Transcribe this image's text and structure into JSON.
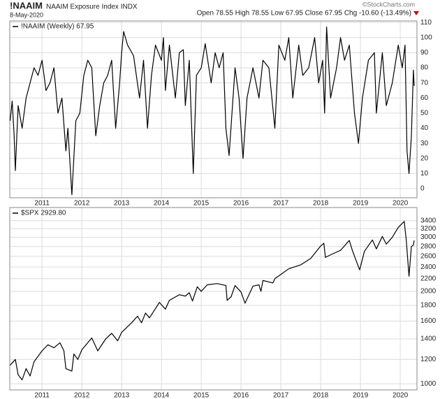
{
  "chart_data": [
    {
      "type": "line",
      "title": "!NAAIM",
      "subtitle": "NAAIM Exposure Index INDX",
      "date": "8-May-2020",
      "quote": "Open 78.55 High 78.55 Low 67.95 Close 67.95 Chg -10.60 (-13.49%)",
      "credit": "©StockCharts.com",
      "x": [
        2010.2,
        2010.25,
        2010.3,
        2010.33,
        2010.4,
        2010.5,
        2010.6,
        2010.7,
        2010.8,
        2010.9,
        2011.0,
        2011.1,
        2011.2,
        2011.3,
        2011.4,
        2011.5,
        2011.6,
        2011.65,
        2011.75,
        2011.85,
        2011.95,
        2012.05,
        2012.15,
        2012.25,
        2012.35,
        2012.45,
        2012.55,
        2012.65,
        2012.75,
        2012.85,
        2012.95,
        2013.0,
        2013.05,
        2013.15,
        2013.3,
        2013.45,
        2013.55,
        2013.65,
        2013.75,
        2013.85,
        2014.0,
        2014.05,
        2014.1,
        2014.2,
        2014.35,
        2014.45,
        2014.55,
        2014.6,
        2014.7,
        2014.8,
        2014.88,
        2015.0,
        2015.1,
        2015.25,
        2015.35,
        2015.45,
        2015.55,
        2015.62,
        2015.7,
        2015.85,
        2015.95,
        2016.05,
        2016.15,
        2016.3,
        2016.45,
        2016.55,
        2016.7,
        2016.85,
        2016.95,
        2017.1,
        2017.2,
        2017.3,
        2017.45,
        2017.55,
        2017.7,
        2017.85,
        2017.95,
        2018.05,
        2018.1,
        2018.15,
        2018.25,
        2018.4,
        2018.5,
        2018.6,
        2018.72,
        2018.85,
        2018.95,
        2019.05,
        2019.2,
        2019.35,
        2019.4,
        2019.55,
        2019.65,
        2019.8,
        2019.95,
        2020.05,
        2020.12,
        2020.17,
        2020.22,
        2020.28,
        2020.33,
        2020.35
      ],
      "series": [
        {
          "name": "!NAAIM (Weekly) 67.95",
          "color": "#000000",
          "values": [
            45,
            58,
            35,
            12,
            55,
            40,
            60,
            70,
            80,
            75,
            85,
            65,
            70,
            80,
            50,
            60,
            25,
            40,
            -4,
            45,
            50,
            75,
            85,
            80,
            35,
            55,
            70,
            75,
            85,
            40,
            70,
            90,
            104,
            95,
            88,
            60,
            85,
            40,
            75,
            95,
            85,
            100,
            65,
            95,
            60,
            90,
            92,
            55,
            85,
            10,
            75,
            80,
            96,
            70,
            90,
            80,
            90,
            40,
            22,
            80,
            60,
            20,
            60,
            80,
            60,
            85,
            80,
            40,
            95,
            85,
            100,
            60,
            95,
            75,
            80,
            100,
            70,
            85,
            50,
            107,
            60,
            80,
            100,
            85,
            95,
            50,
            30,
            60,
            85,
            90,
            50,
            90,
            55,
            70,
            95,
            80,
            95,
            25,
            10,
            35,
            78.55,
            67.95
          ]
        }
      ],
      "xlim": [
        2010.19,
        2020.42
      ],
      "xticks": [
        2011,
        2012,
        2013,
        2014,
        2015,
        2016,
        2017,
        2018,
        2019,
        2020
      ],
      "ylim": [
        -6,
        111
      ],
      "yticks": [
        0,
        10,
        20,
        30,
        40,
        50,
        60,
        70,
        80,
        90,
        100,
        110
      ],
      "grid": true,
      "log_scale": false
    },
    {
      "type": "line",
      "x": [
        2010.2,
        2010.33,
        2010.4,
        2010.5,
        2010.6,
        2010.7,
        2010.8,
        2011.0,
        2011.15,
        2011.3,
        2011.45,
        2011.55,
        2011.6,
        2011.75,
        2011.8,
        2011.9,
        2012.0,
        2012.25,
        2012.4,
        2012.6,
        2012.75,
        2012.9,
        2013.0,
        2013.25,
        2013.4,
        2013.5,
        2013.6,
        2013.7,
        2013.95,
        2014.1,
        2014.2,
        2014.45,
        2014.6,
        2014.7,
        2014.78,
        2014.9,
        2015.0,
        2015.15,
        2015.4,
        2015.62,
        2015.65,
        2015.75,
        2015.85,
        2016.0,
        2016.1,
        2016.3,
        2016.45,
        2016.5,
        2016.55,
        2016.8,
        2016.85,
        2017.0,
        2017.2,
        2017.5,
        2017.75,
        2018.0,
        2018.08,
        2018.12,
        2018.3,
        2018.5,
        2018.72,
        2018.8,
        2018.98,
        2019.1,
        2019.3,
        2019.4,
        2019.55,
        2019.65,
        2019.8,
        2019.95,
        2020.1,
        2020.15,
        2020.22,
        2020.28,
        2020.33,
        2020.35
      ],
      "series": [
        {
          "name": "$SPX 2929.80",
          "color": "#000000",
          "values": [
            1150,
            1200,
            1070,
            1030,
            1120,
            1060,
            1180,
            1280,
            1340,
            1310,
            1360,
            1280,
            1120,
            1100,
            1250,
            1200,
            1290,
            1410,
            1280,
            1400,
            1460,
            1380,
            1470,
            1580,
            1660,
            1580,
            1700,
            1640,
            1840,
            1750,
            1870,
            1950,
            1930,
            1980,
            1860,
            2070,
            2000,
            2100,
            2120,
            2090,
            1870,
            1920,
            2090,
            1990,
            1830,
            2080,
            2100,
            2000,
            2170,
            2130,
            2200,
            2270,
            2370,
            2440,
            2560,
            2810,
            2870,
            2580,
            2650,
            2720,
            2930,
            2710,
            2350,
            2700,
            2940,
            2750,
            3020,
            2850,
            3000,
            3230,
            3380,
            2950,
            2240,
            2800,
            2830,
            2929.8
          ]
        }
      ],
      "xlim": [
        2010.19,
        2020.42
      ],
      "xticks": [
        2011,
        2012,
        2013,
        2014,
        2015,
        2016,
        2017,
        2018,
        2019,
        2020
      ],
      "ylim": [
        955,
        3750
      ],
      "yticks": [
        1000,
        1200,
        1400,
        1600,
        1800,
        2000,
        2200,
        2400,
        2600,
        2800,
        3000,
        3200,
        3400
      ],
      "grid": true,
      "log_scale": true
    }
  ]
}
